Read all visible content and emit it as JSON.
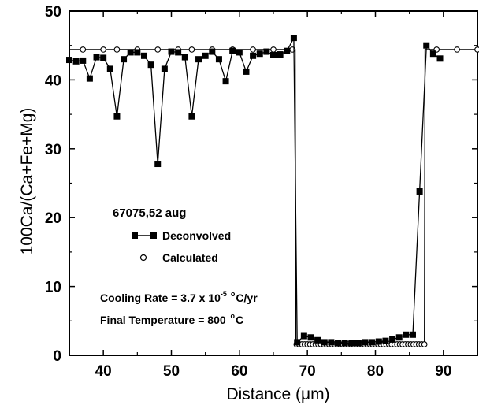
{
  "chart_data": {
    "type": "line",
    "xlabel": "Distance (μm)",
    "ylabel": "100Ca/(Ca+Fe+Mg)",
    "xlim": [
      35,
      95
    ],
    "ylim": [
      0,
      50
    ],
    "x_ticks": [
      40,
      50,
      60,
      70,
      80,
      90
    ],
    "x_tick_labels": [
      "40",
      "50",
      "60",
      "70",
      "80",
      "90"
    ],
    "y_ticks": [
      0,
      10,
      20,
      30,
      40,
      50
    ],
    "y_tick_labels": [
      "0",
      "10",
      "20",
      "30",
      "40",
      "50"
    ],
    "grid": false,
    "sample_label": "67075,52 aug",
    "series": [
      {
        "name": "Deconvolved",
        "marker": "filled-square",
        "line": true,
        "x": [
          35,
          36,
          37,
          38,
          39,
          40,
          41,
          42,
          43,
          44,
          45,
          46,
          47,
          48,
          49,
          50,
          51,
          52,
          53,
          54,
          55,
          56,
          57,
          58,
          59,
          60,
          61,
          62,
          63,
          64,
          65,
          66,
          67,
          68,
          68.5,
          69.5,
          70.5,
          71.5,
          72.5,
          73.5,
          74.5,
          75.5,
          76.5,
          77.5,
          78.5,
          79.5,
          80.5,
          81.5,
          82.5,
          83.5,
          84.5,
          85.5,
          86.5,
          87.5,
          88.5,
          89.5
        ],
        "y": [
          42.9,
          42.7,
          42.8,
          40.2,
          43.3,
          43.2,
          41.6,
          34.7,
          43.0,
          44.0,
          44.0,
          43.5,
          42.2,
          27.8,
          41.6,
          44.1,
          44.0,
          43.3,
          34.7,
          43.0,
          43.5,
          44.1,
          43.0,
          39.8,
          44.2,
          44.0,
          41.2,
          43.5,
          43.8,
          44.1,
          43.6,
          43.7,
          44.2,
          46.1,
          1.9,
          2.8,
          2.6,
          2.2,
          1.9,
          1.9,
          1.8,
          1.8,
          1.8,
          1.8,
          1.9,
          1.9,
          2.0,
          2.1,
          2.3,
          2.6,
          3.0,
          3.0,
          23.8,
          45.0,
          43.8,
          43.1
        ]
      },
      {
        "name": "Calculated",
        "marker": "open-circle",
        "line": true,
        "x": [
          37,
          40,
          42,
          45,
          48,
          51,
          53,
          56,
          59,
          62,
          65,
          67.8,
          68.4,
          68.8,
          69.2,
          69.6,
          70,
          70.4,
          70.8,
          71.2,
          71.6,
          72,
          72.4,
          72.8,
          73.2,
          73.6,
          74,
          74.4,
          74.8,
          75.2,
          75.6,
          76,
          76.4,
          76.8,
          77.2,
          77.6,
          78,
          78.4,
          78.8,
          79.2,
          79.6,
          80,
          80.4,
          80.8,
          81.2,
          81.6,
          82,
          82.4,
          82.8,
          83.2,
          83.6,
          84,
          84.4,
          84.8,
          85.2,
          85.6,
          86,
          86.4,
          86.8,
          87.2,
          89,
          92,
          95
        ],
        "y": [
          44.4,
          44.4,
          44.4,
          44.4,
          44.4,
          44.4,
          44.4,
          44.4,
          44.4,
          44.4,
          44.4,
          44.4,
          1.6,
          1.6,
          1.6,
          1.6,
          1.6,
          1.6,
          1.6,
          1.6,
          1.6,
          1.6,
          1.6,
          1.6,
          1.6,
          1.6,
          1.6,
          1.6,
          1.6,
          1.6,
          1.6,
          1.6,
          1.6,
          1.6,
          1.6,
          1.6,
          1.6,
          1.6,
          1.6,
          1.6,
          1.6,
          1.6,
          1.6,
          1.6,
          1.6,
          1.6,
          1.6,
          1.6,
          1.6,
          1.6,
          1.6,
          1.6,
          1.6,
          1.6,
          1.6,
          1.6,
          1.6,
          1.6,
          1.6,
          1.6,
          44.4,
          44.4,
          44.4
        ],
        "line_x": [
          35,
          68.2,
          68.3,
          87.2,
          87.3,
          95
        ],
        "line_y": [
          44.4,
          44.4,
          1.6,
          1.6,
          44.4,
          44.4
        ]
      }
    ],
    "legend": {
      "placement": "center-left",
      "entries": [
        "Deconvolved",
        "Calculated"
      ]
    },
    "annotations": {
      "cooling_prefix": "Cooling Rate = 3.7 x 10",
      "cooling_exp": "-5",
      "cooling_deg": "o",
      "cooling_unit": "C/yr",
      "final_prefix": "Final Temperature = 800 ",
      "final_deg": "o",
      "final_unit": "C"
    }
  }
}
